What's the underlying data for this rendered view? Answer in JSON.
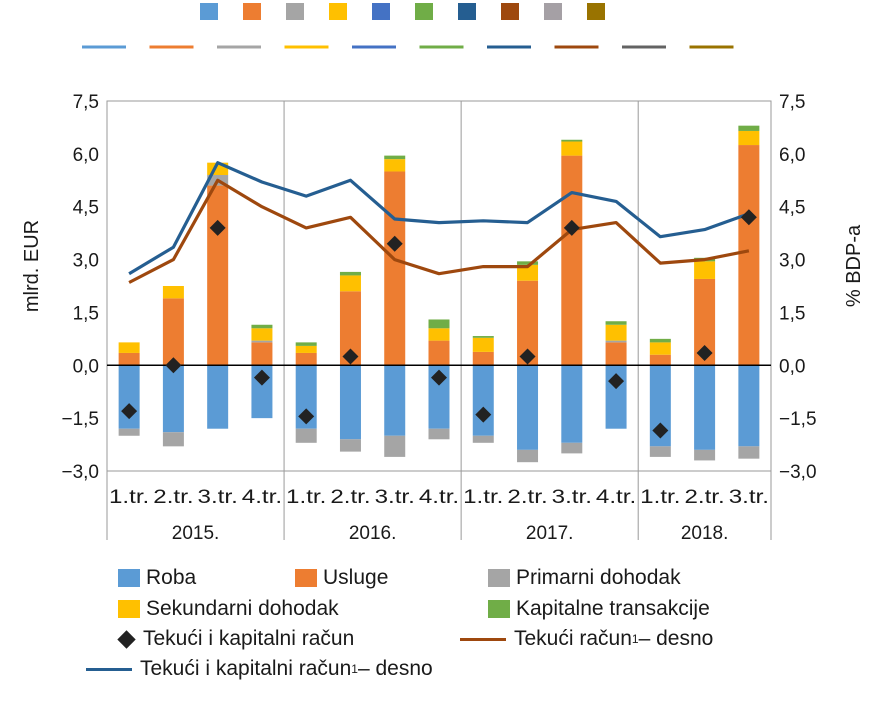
{
  "chart_data": {
    "type": "bar",
    "left_axis": {
      "label": "mlrd. EUR",
      "ylim": [
        -3.0,
        7.5
      ],
      "ticks": [
        "−3,0",
        "−1,5",
        "0,0",
        "1,5",
        "3,0",
        "4,5",
        "6,0",
        "7,5"
      ]
    },
    "right_axis": {
      "label": "% BDP-a",
      "ylim": [
        -3.0,
        7.5
      ],
      "ticks": [
        "−3,0",
        "−1,5",
        "0,0",
        "1,5",
        "3,0",
        "4,5",
        "6,0",
        "7,5"
      ]
    },
    "categories": [
      "1.tr.",
      "2.tr.",
      "3.tr.",
      "4.tr.",
      "1.tr.",
      "2.tr.",
      "3.tr.",
      "4.tr.",
      "1.tr.",
      "2.tr.",
      "3.tr.",
      "4.tr.",
      "1.tr.",
      "2.tr.",
      "3.tr."
    ],
    "years": [
      {
        "label": "2015.",
        "quarters": 4
      },
      {
        "label": "2016.",
        "quarters": 4
      },
      {
        "label": "2017.",
        "quarters": 4
      },
      {
        "label": "2018.",
        "quarters": 3
      }
    ],
    "stacked_series": [
      {
        "name": "Roba",
        "color": "#5b9bd5",
        "values": [
          -1.8,
          -1.9,
          -1.8,
          -1.5,
          -1.8,
          -2.1,
          -2.0,
          -1.8,
          -2.0,
          -2.4,
          -2.2,
          -1.8,
          -2.3,
          -2.4,
          -2.3
        ]
      },
      {
        "name": "Usluge",
        "color": "#ed7d31",
        "values": [
          0.35,
          1.9,
          5.1,
          0.65,
          0.35,
          2.1,
          5.5,
          0.7,
          0.38,
          2.4,
          5.95,
          0.65,
          0.3,
          2.45,
          6.25
        ]
      },
      {
        "name": "Primarni dohodak",
        "color": "#a5a5a5",
        "values": [
          -0.2,
          -0.4,
          0.3,
          0.05,
          -0.4,
          -0.35,
          -0.6,
          -0.3,
          -0.2,
          -0.35,
          -0.3,
          0.05,
          -0.3,
          -0.3,
          -0.35
        ]
      },
      {
        "name": "Sekundarni dohodak",
        "color": "#ffc000",
        "values": [
          0.3,
          0.35,
          0.35,
          0.35,
          0.2,
          0.45,
          0.35,
          0.35,
          0.4,
          0.45,
          0.4,
          0.45,
          0.35,
          0.5,
          0.4
        ]
      },
      {
        "name": "Kapitalne transakcije",
        "color": "#70ad47",
        "values": [
          0.0,
          0.0,
          0.0,
          0.1,
          0.1,
          0.1,
          0.1,
          0.25,
          0.05,
          0.1,
          0.05,
          0.1,
          0.1,
          0.1,
          0.15
        ]
      }
    ],
    "markers": {
      "name": "Tekući i kapitalni račun",
      "color": "#222222",
      "values": [
        -1.3,
        0.0,
        3.9,
        -0.35,
        -1.45,
        0.25,
        3.45,
        -0.35,
        -1.4,
        0.25,
        3.9,
        -0.45,
        -1.85,
        0.35,
        4.2
      ]
    },
    "lines": [
      {
        "name": "Tekući račun¹ – desno",
        "color": "#9e480e",
        "values": [
          2.35,
          3.0,
          5.25,
          4.5,
          3.9,
          4.2,
          3.0,
          2.6,
          2.8,
          2.8,
          3.85,
          4.05,
          2.9,
          3.0,
          3.25
        ]
      },
      {
        "name": "Tekući i kapitalni račun¹ – desno",
        "color": "#255e91",
        "values": [
          2.6,
          3.35,
          5.75,
          5.2,
          4.8,
          5.25,
          4.15,
          4.05,
          4.1,
          4.05,
          4.9,
          4.65,
          3.65,
          3.85,
          4.3
        ]
      }
    ],
    "top_legend_swatches": [
      "#5b9bd5",
      "#ed7d31",
      "#a5a5a5",
      "#ffc000",
      "#4472c4",
      "#70ad47",
      "#255e91",
      "#9e480e",
      "#a5a0a5",
      "#997300"
    ],
    "top_legend_lines": [
      "#5b9bd5",
      "#ed7d31",
      "#a5a5a5",
      "#ffc000",
      "#4472c4",
      "#70ad47",
      "#255e91",
      "#9e480e",
      "#636363",
      "#997300"
    ],
    "grid": false
  },
  "legend": [
    {
      "key": "roba",
      "label": "Roba",
      "type": "box",
      "color": "#5b9bd5"
    },
    {
      "key": "usluge",
      "label": "Usluge",
      "type": "box",
      "color": "#ed7d31"
    },
    {
      "key": "primarni",
      "label": "Primarni dohodak",
      "type": "box",
      "color": "#a5a5a5"
    },
    {
      "key": "sekundarni",
      "label": "Sekundarni dohodak",
      "type": "box",
      "color": "#ffc000"
    },
    {
      "key": "kapitalne",
      "label": "Kapitalne transakcije",
      "type": "box",
      "color": "#70ad47"
    },
    {
      "key": "tkr",
      "label": "Tekući i kapitalni račun",
      "type": "diamond",
      "color": "#222222"
    },
    {
      "key": "tr_line",
      "label": "Tekući račun",
      "sup": "1",
      "suffix": " – desno",
      "type": "line",
      "color": "#9e480e"
    },
    {
      "key": "tkr_line",
      "label": "Tekući i kapitalni račun",
      "sup": "1",
      "suffix": " – desno",
      "type": "line",
      "color": "#255e91"
    }
  ]
}
